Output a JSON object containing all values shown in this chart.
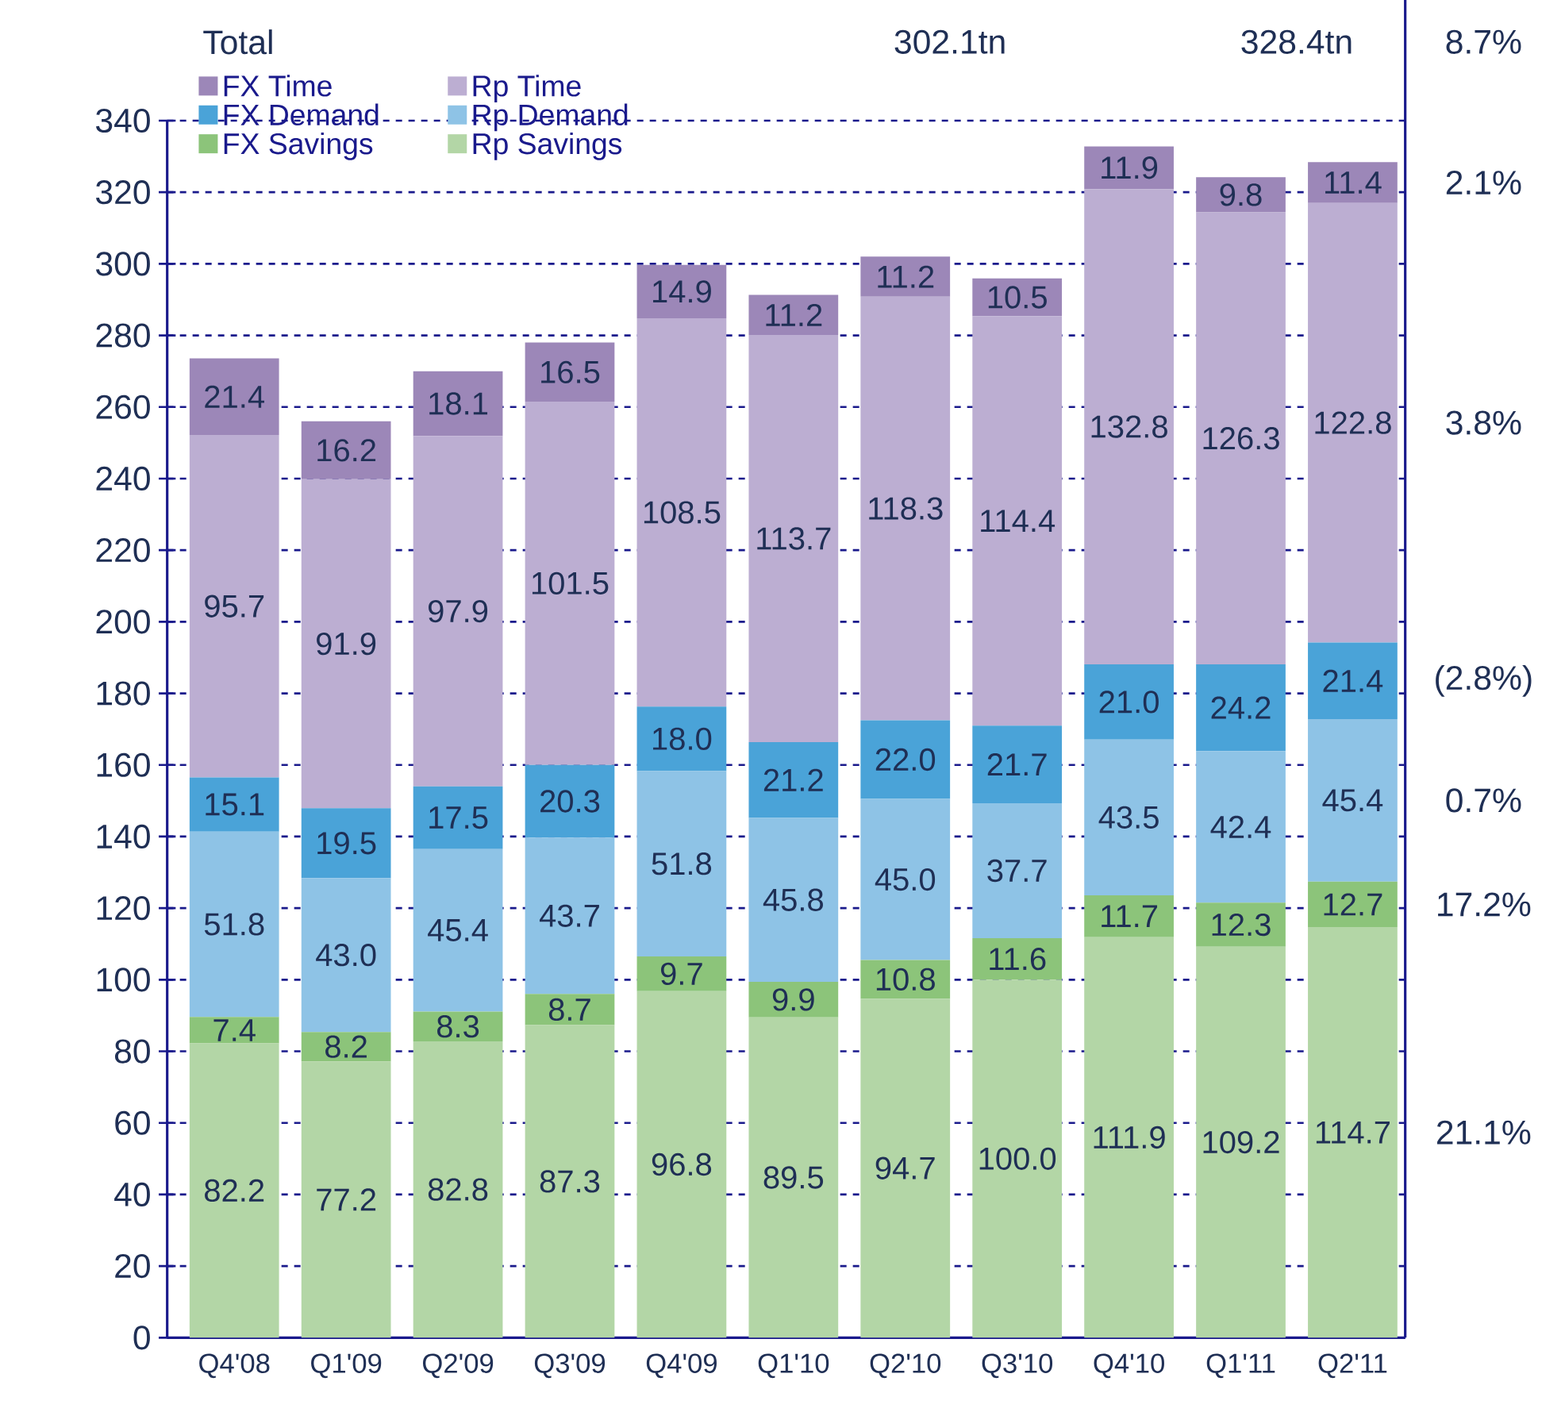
{
  "chart_data": {
    "type": "bar",
    "stacked": true,
    "categories": [
      "Q4'08",
      "Q1'09",
      "Q2'09",
      "Q3'09",
      "Q4'09",
      "Q1'10",
      "Q2'10",
      "Q3'10",
      "Q4'10",
      "Q1'11",
      "Q2'11"
    ],
    "series": [
      {
        "name": "Rp Savings",
        "color": "#b3d6a6",
        "values": [
          82.2,
          77.2,
          82.8,
          87.3,
          96.8,
          89.5,
          94.7,
          100.0,
          111.9,
          109.2,
          114.7
        ],
        "value_labels": [
          "82.2",
          "77.2",
          "82.8",
          "87.3",
          "96.8",
          "89.5",
          "94.7",
          "100.0",
          "111.9",
          "109.2",
          "114.7"
        ]
      },
      {
        "name": "FX Savings",
        "color": "#8cc47a",
        "values": [
          7.4,
          8.2,
          8.3,
          8.7,
          9.7,
          9.9,
          10.8,
          11.6,
          11.7,
          12.3,
          12.7
        ],
        "value_labels": [
          "7.4",
          "8.2",
          "8.3",
          "8.7",
          "9.7",
          "9.9",
          "10.8",
          "11.6",
          "11.7",
          "12.3",
          "12.7"
        ]
      },
      {
        "name": "Rp Demand",
        "color": "#8ec3e6",
        "values": [
          51.8,
          43.0,
          45.4,
          43.7,
          51.8,
          45.8,
          45.0,
          37.7,
          43.5,
          42.4,
          45.4
        ],
        "value_labels": [
          "51.8",
          "43.0",
          "45.4",
          "43.7",
          "51.8",
          "45.8",
          "45.0",
          "37.7",
          "43.5",
          "42.4",
          "45.4"
        ]
      },
      {
        "name": "FX Demand",
        "color": "#4aa3d8",
        "values": [
          15.1,
          19.5,
          17.5,
          20.3,
          18.0,
          21.2,
          22.0,
          21.7,
          21.0,
          24.2,
          21.4
        ],
        "value_labels": [
          "15.1",
          "19.5",
          "17.5",
          "20.3",
          "18.0",
          "21.2",
          "22.0",
          "21.7",
          "21.0",
          "24.2",
          "21.4"
        ]
      },
      {
        "name": "Rp Time",
        "color": "#bcaed2",
        "values": [
          95.7,
          91.9,
          97.9,
          101.5,
          108.5,
          113.7,
          118.3,
          114.4,
          132.8,
          126.3,
          122.8
        ],
        "value_labels": [
          "95.7",
          "91.9",
          "97.9",
          "101.5",
          "108.5",
          "113.7",
          "118.3",
          "114.4",
          "132.8",
          "126.3",
          "122.8"
        ]
      },
      {
        "name": "FX Time",
        "color": "#9c87b8",
        "values": [
          21.4,
          16.2,
          18.1,
          16.5,
          14.9,
          11.2,
          11.2,
          10.5,
          11.9,
          9.8,
          11.4
        ],
        "value_labels": [
          "21.4",
          "16.2",
          "18.1",
          "16.5",
          "14.9",
          "11.2",
          "11.2",
          "10.5",
          "11.9",
          "9.8",
          "11.4"
        ]
      }
    ],
    "ylim": [
      0,
      340
    ],
    "yticks": [
      0,
      20,
      40,
      60,
      80,
      100,
      120,
      140,
      160,
      180,
      200,
      220,
      240,
      260,
      280,
      300,
      320,
      340
    ],
    "grid": "y",
    "legend": "top left",
    "annotations": [
      "Total",
      "302.1tn",
      "328.4tn",
      "8.7%",
      "2.1%",
      "3.8%",
      "(2.8%)",
      "0.7%",
      "17.2%",
      "21.1%"
    ]
  }
}
